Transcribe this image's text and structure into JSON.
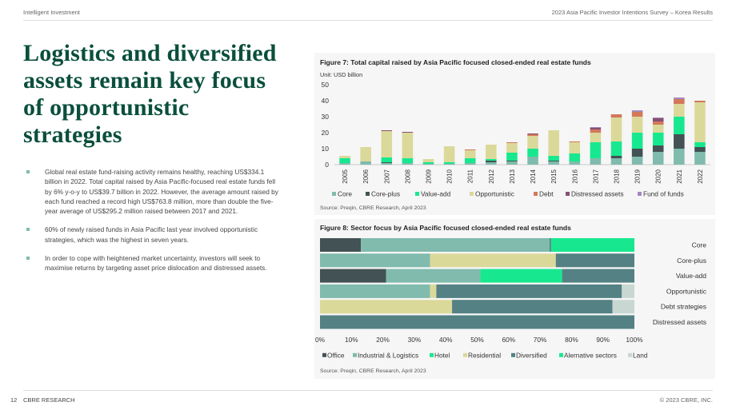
{
  "header": {
    "left": "Intelligent Investment",
    "right": "2023 Asia Pacific Investor Intentions Survey – Korea Results"
  },
  "title": "Logistics and diversified assets remain key focus of opportunistic strategies",
  "bullets": [
    "Global real estate fund-raising activity remains healthy, reaching US$334.1 billion in 2022. Total capital raised by Asia Pacific-focused real estate funds fell by 6% y-o-y to US$39.7 billion in 2022. However, the average amount raised by each fund reached a record high US$763.8 million, more than double the five-year average of US$295.2 million raised between 2017 and 2021.",
    "60% of newly raised funds in Asia Pacific last year involved opportunistic strategies, which was the highest in seven years.",
    "In order to cope with heightened market uncertainty, investors will seek to maximise returns by targeting asset price dislocation and distressed assets."
  ],
  "fig7": {
    "title": "Figure 7:  Total capital raised by Asia Pacific focused closed-ended real estate funds",
    "unit": "Unit: USD billion",
    "source": "Source: Preqin, CBRE Research, April 2023"
  },
  "fig8": {
    "title": "Figure 8: Sector focus by Asia Pacific focused closed-ended real estate funds",
    "source": "Source: Preqin, CBRE Research, April 2023"
  },
  "chart_data": [
    {
      "type": "bar",
      "stacked": true,
      "title": "Figure 7:  Total capital raised by Asia Pacific focused closed-ended real estate funds",
      "ylabel": "Unit: USD billion",
      "ylim": [
        0,
        50
      ],
      "yticks": [
        "0",
        "10",
        "20",
        "30",
        "40",
        "50"
      ],
      "categories": [
        "2005",
        "2006",
        "2007",
        "2008",
        "2009",
        "2010",
        "2011",
        "2012",
        "2013",
        "2014",
        "2015",
        "2016",
        "2017",
        "2018",
        "2019",
        "2020",
        "2021",
        "2022"
      ],
      "series": [
        {
          "name": "Core",
          "color": "#80bbad",
          "values": [
            1,
            2,
            1,
            1,
            0.5,
            0.5,
            1,
            1.5,
            2,
            5,
            2,
            2,
            4,
            4,
            5,
            8,
            10,
            8
          ]
        },
        {
          "name": "Core-plus",
          "color": "#435254",
          "values": [
            0,
            0,
            0.5,
            0,
            0,
            0,
            0,
            1,
            0.5,
            0,
            0.5,
            0,
            0,
            1.5,
            5,
            4,
            9,
            3
          ]
        },
        {
          "name": "Value-add",
          "color": "#17e88f",
          "values": [
            3,
            0,
            3,
            3,
            1,
            1,
            3,
            1,
            5,
            5,
            3,
            5,
            10,
            9,
            10,
            8,
            11,
            3
          ]
        },
        {
          "name": "Opportunistic",
          "color": "#dbd99a",
          "values": [
            1.5,
            9,
            16.5,
            16,
            2,
            10,
            5,
            9,
            6,
            8,
            16,
            7,
            6,
            15,
            10,
            5,
            8,
            25
          ]
        },
        {
          "name": "Debt",
          "color": "#d2785a",
          "values": [
            0,
            0,
            0,
            0,
            0,
            0,
            0.5,
            0,
            0.5,
            1,
            0,
            0.5,
            2,
            2,
            3,
            2,
            3,
            1
          ]
        },
        {
          "name": "Distressed assets",
          "color": "#885073",
          "values": [
            0,
            0,
            0.5,
            0.5,
            0,
            0,
            0,
            0,
            0,
            0.5,
            0,
            0,
            1,
            0,
            0,
            2,
            0,
            0
          ]
        },
        {
          "name": "Fund of funds",
          "color": "#a388bf",
          "values": [
            0,
            0,
            0,
            0,
            0,
            0,
            0,
            0,
            0,
            0,
            0,
            0,
            0.5,
            0,
            1,
            0.5,
            1,
            0
          ]
        }
      ]
    },
    {
      "type": "bar",
      "orientation": "horizontal",
      "stacked": true,
      "percent": true,
      "title": "Figure 8: Sector focus by Asia Pacific focused closed-ended real estate funds",
      "categories": [
        "Core",
        "Core-plus",
        "Value-add",
        "Opportunistic",
        "Debt strategies",
        "Distressed assets"
      ],
      "xticks": [
        "0%",
        "10%",
        "20%",
        "30%",
        "40%",
        "50%",
        "60%",
        "70%",
        "80%",
        "90%",
        "100%"
      ],
      "series": [
        {
          "name": "Office",
          "color": "#435254",
          "values": [
            13,
            0,
            21,
            0,
            0,
            0
          ]
        },
        {
          "name": "Industrial & Logistics",
          "color": "#80bbad",
          "values": [
            60,
            35,
            30,
            35,
            0,
            0
          ]
        },
        {
          "name": "Hotel",
          "color": "#17e88f",
          "values": [
            0,
            0,
            26,
            0,
            0,
            0
          ]
        },
        {
          "name": "Residential",
          "color": "#dbd99a",
          "values": [
            0,
            40,
            0,
            2,
            42,
            0
          ]
        },
        {
          "name": "Diversified",
          "color": "#538184",
          "values": [
            0.5,
            25,
            23,
            59,
            51,
            100
          ]
        },
        {
          "name": "Alernative sectors",
          "color": "#17e88f",
          "values": [
            26.5,
            0,
            0,
            0,
            0,
            0
          ]
        },
        {
          "name": "Land",
          "color": "#c9d7d3",
          "values": [
            0,
            0,
            0,
            4,
            7,
            0
          ]
        }
      ]
    }
  ],
  "footer": {
    "page": "12",
    "left": "CBRE RESEARCH",
    "right": "© 2023 CBRE, INC."
  }
}
